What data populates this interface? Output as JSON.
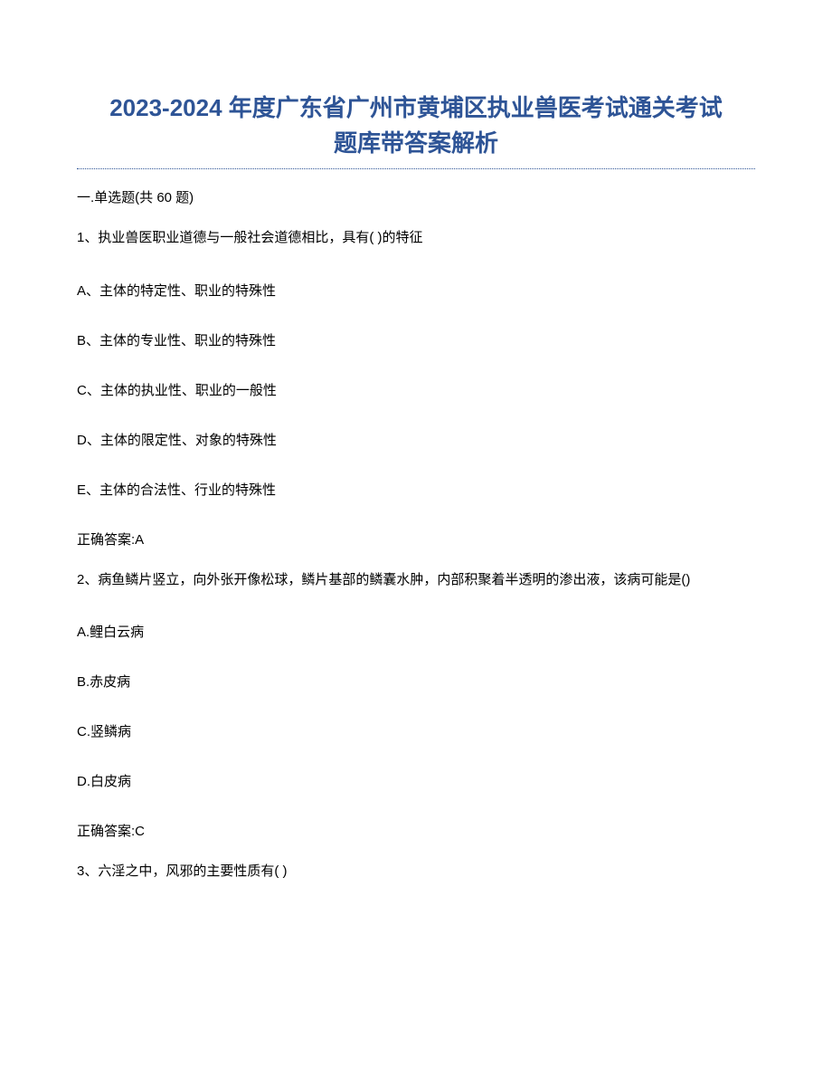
{
  "title_line1": "2023-2024 年度广东省广州市黄埔区执业兽医考试通关考试",
  "title_line2": "题库带答案解析",
  "section_header": "一.单选题(共 60 题)",
  "questions": [
    {
      "stem": "1、执业兽医职业道德与一般社会道德相比，具有( )的特征",
      "options": [
        "A、主体的特定性、职业的特殊性",
        "B、主体的专业性、职业的特殊性",
        "C、主体的执业性、职业的一般性",
        "D、主体的限定性、对象的特殊性",
        "E、主体的合法性、行业的特殊性"
      ],
      "answer": "正确答案:A"
    },
    {
      "stem": "2、病鱼鳞片竖立，向外张开像松球，鳞片基部的鳞囊水肿，内部积聚着半透明的渗出液，该病可能是()",
      "options": [
        "A.鲤白云病",
        "B.赤皮病",
        "C.竖鳞病",
        "D.白皮病"
      ],
      "answer": "正确答案:C"
    },
    {
      "stem": "3、六淫之中，风邪的主要性质有( )",
      "options": [],
      "answer": ""
    }
  ],
  "colors": {
    "title_color": "#2e5496",
    "divider_color": "#2e5496",
    "text_color": "#000000",
    "background_color": "#ffffff"
  },
  "typography": {
    "title_fontsize": 26,
    "body_fontsize": 15
  }
}
